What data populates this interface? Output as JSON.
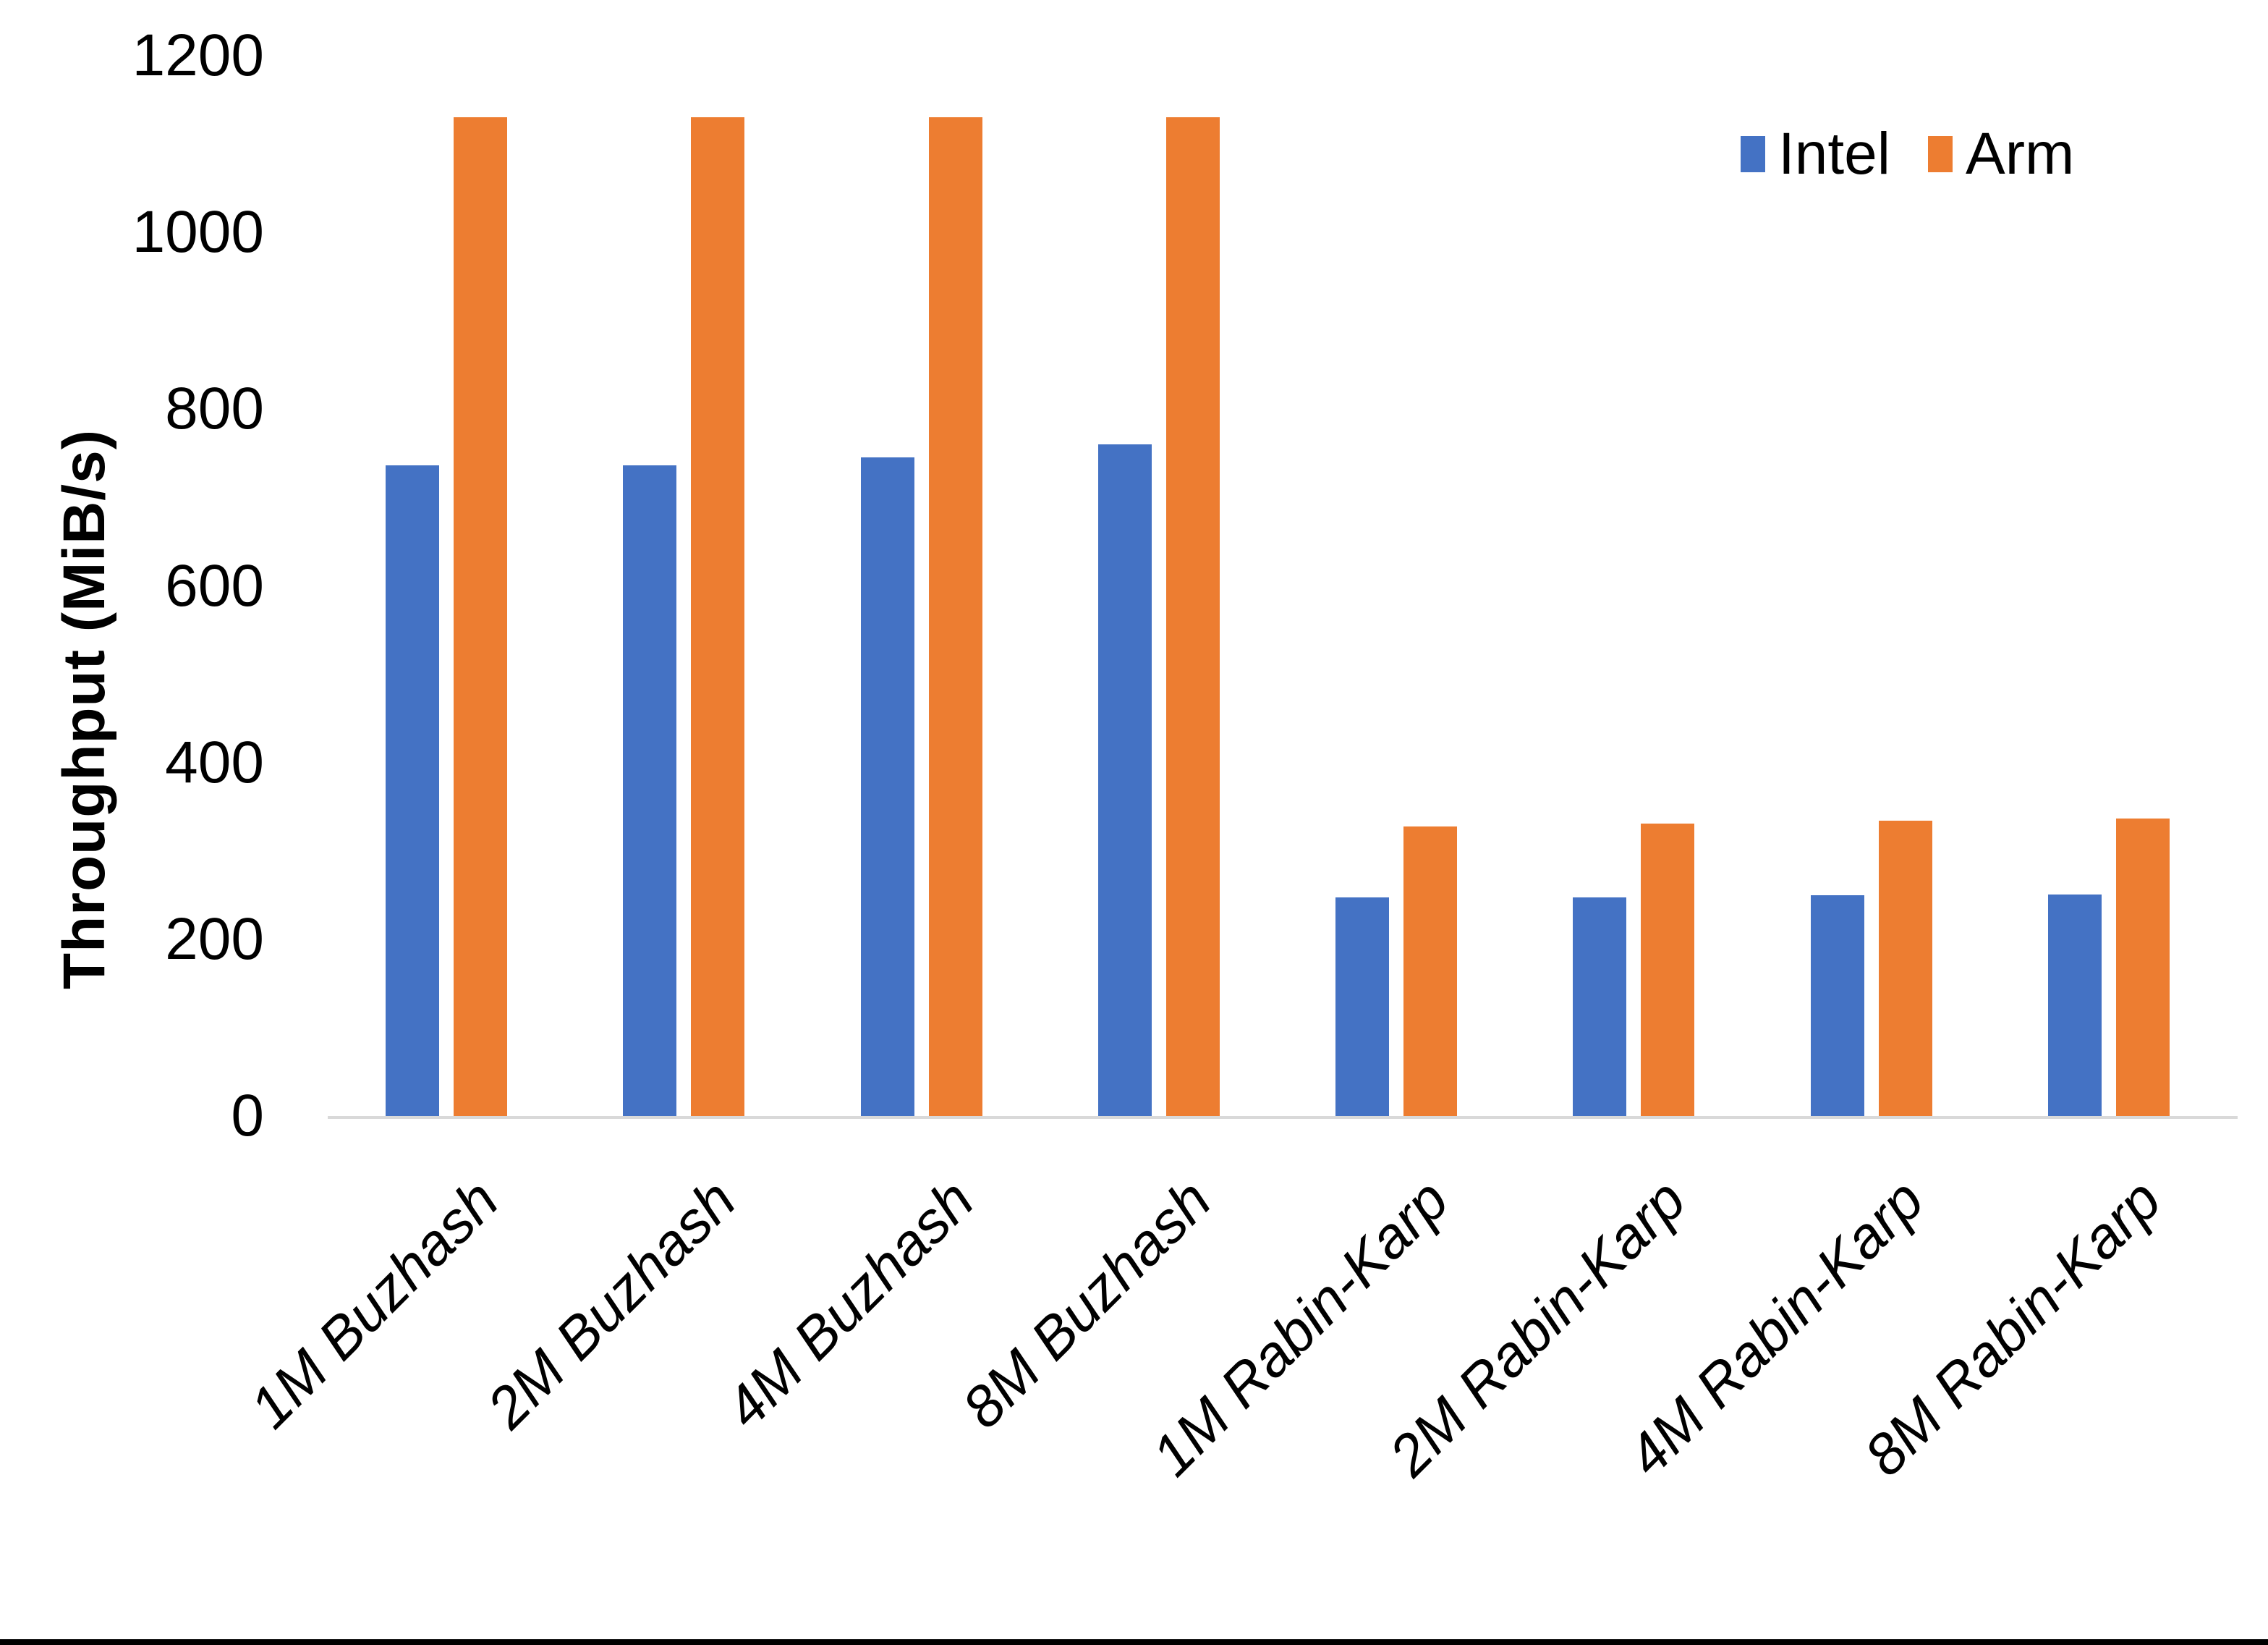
{
  "chart_data": {
    "type": "bar",
    "title": "",
    "ylabel": "Throughput (MiB/s)",
    "xlabel": "",
    "categories": [
      "1M Buzhash",
      "2M Buzhash",
      "4M Buzhash",
      "8M Buzhash",
      "1M Rabin-Karp",
      "2M Rabin-Karp",
      "4M Rabin-Karp",
      "8M Rabin-Karp"
    ],
    "series": [
      {
        "name": "Intel",
        "color": "#4472C4",
        "values": [
          736,
          736,
          745,
          760,
          247,
          247,
          250,
          251
        ]
      },
      {
        "name": "Arm",
        "color": "#ED7D31",
        "values": [
          1130,
          1130,
          1130,
          1130,
          328,
          331,
          334,
          337
        ]
      }
    ],
    "y_ticks": [
      0,
      200,
      400,
      600,
      800,
      1000,
      1200
    ],
    "ylim": [
      0,
      1200
    ],
    "grid": false,
    "legend_position": "top-right",
    "axis_line_color": "#D9D9D9",
    "text_color": "#000000",
    "background_color": "#FFFFFF",
    "bottom_border_color": "#000000"
  }
}
